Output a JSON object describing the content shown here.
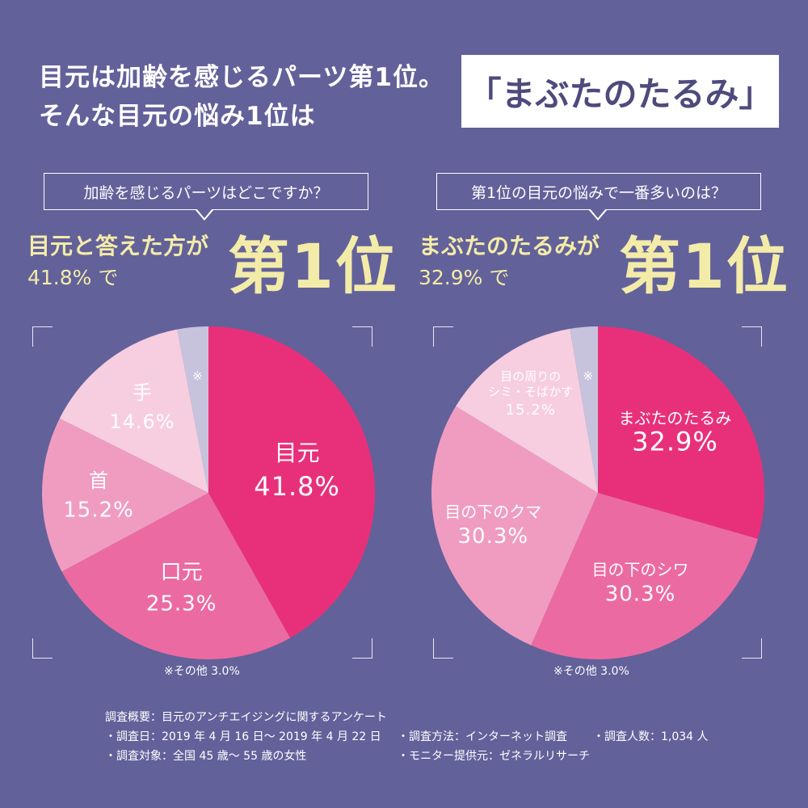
{
  "headline": {
    "line1": "目元は加齢を感じるパーツ第1位。",
    "line2": "そんな目元の悩み1位は",
    "highlight": "「まぶたのたるみ」"
  },
  "left_panel": {
    "question": "加齢を感じるパーツはどこですか？",
    "result_line1": "目元と答えた方が",
    "result_line2": "41.8% で",
    "rank": "第1位",
    "footnote": "※その他 3.0%"
  },
  "right_panel": {
    "question": "第1位の目元の悩みで一番多いのは？",
    "result_line1": "まぶたのたるみが",
    "result_line2": "32.9% で",
    "rank": "第1位",
    "footnote": "※その他 3.0%"
  },
  "survey": {
    "overview": "調査概要：目元のアンチエイジングに関するアンケート",
    "date": "・調査日：2019 年 4 月 16 日〜 2019 年 4 月 22 日",
    "method": "・調査方法：インターネット調査",
    "count": "・調査人数：1,034 人",
    "target": "・調査対象：全国 45 歳〜 55 歳の女性",
    "provider": "・モニター提供元：ゼネラルリサーチ"
  },
  "colors": {
    "background": "#63619a",
    "accent_yellow": "#f3eca8",
    "slice1": "#e8307a",
    "slice2": "#ec6aa2",
    "slice3": "#f09cc1",
    "slice4": "#f7cde0",
    "slice_other": "#c7c3dd"
  },
  "chart_data": [
    {
      "type": "pie",
      "title": "加齢を感じるパーツはどこですか？",
      "categories": [
        "目元",
        "口元",
        "首",
        "手",
        "その他"
      ],
      "values": [
        41.8,
        25.3,
        15.2,
        14.6,
        3.0
      ],
      "labels": [
        "41.8%",
        "25.3%",
        "15.2%",
        "14.6%",
        "※"
      ],
      "colors": [
        "#e8307a",
        "#ec6aa2",
        "#f09cc1",
        "#f7cde0",
        "#c7c3dd"
      ]
    },
    {
      "type": "pie",
      "title": "第1位の目元の悩みで一番多いのは？",
      "categories": [
        "まぶたのたるみ",
        "目の下のシワ",
        "目の下のクマ",
        "目の周りのシミ・そばかす",
        "その他"
      ],
      "category_lines": [
        [
          "まぶたのたるみ"
        ],
        [
          "目の下のシワ"
        ],
        [
          "目の下のクマ"
        ],
        [
          "目の周りの",
          "シミ・そばかす"
        ],
        [
          "※"
        ]
      ],
      "values": [
        32.9,
        30.3,
        30.3,
        15.2,
        3.0
      ],
      "labels": [
        "32.9%",
        "30.3%",
        "30.3%",
        "15.2%",
        ""
      ],
      "colors": [
        "#e8307a",
        "#ec6aa2",
        "#f09cc1",
        "#f7cde0",
        "#c7c3dd"
      ]
    }
  ]
}
